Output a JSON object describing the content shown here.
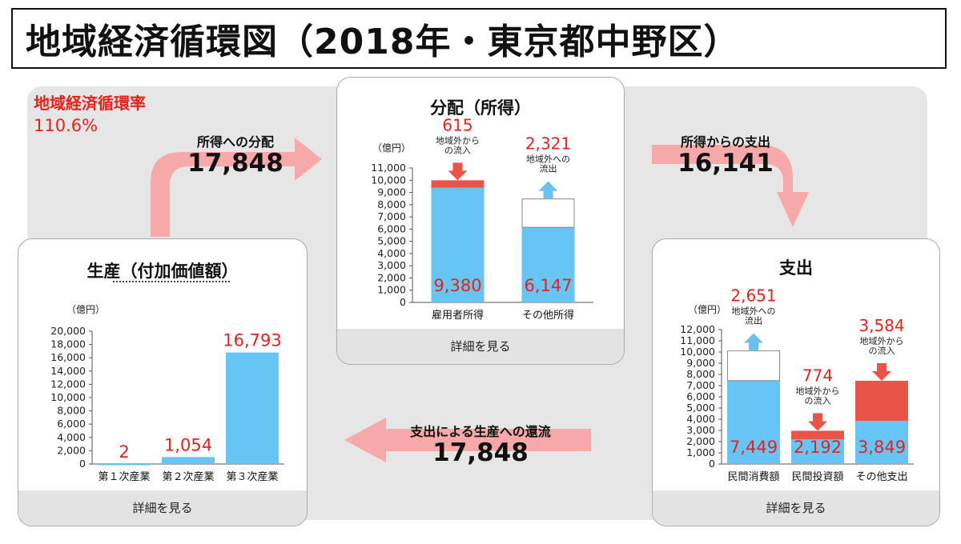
{
  "title": "地域経済循環図（2018年・東京都中野区）",
  "circulation_rate": {
    "label": "地域経済循環率",
    "value": "110.6%"
  },
  "flows": {
    "to_distribution": {
      "label": "所得への分配",
      "value": "17,848"
    },
    "from_income": {
      "label": "所得からの支出",
      "value": "16,141"
    },
    "to_production": {
      "label": "支出による生産への還流",
      "value": "17,848"
    }
  },
  "colors": {
    "blue": "#66c5f5",
    "red": "#e85548",
    "text_red": "#e8221b",
    "arrow": "#f7a8a8",
    "arrow_blue": "#6cc0f0"
  },
  "panels": {
    "production": {
      "title": "生産（付加価値額）",
      "footer": "詳細を見る"
    },
    "distribution": {
      "title": "分配（所得）",
      "footer": "詳細を見る"
    },
    "expenditure": {
      "title": "支出",
      "footer": "詳細を見る"
    }
  },
  "chart_data": [
    {
      "type": "bar",
      "title": "生産（付加価値額）",
      "unit": "（億円）",
      "ylim": [
        0,
        20000
      ],
      "yticks": [
        "0",
        "2,000",
        "4,000",
        "6,000",
        "8,000",
        "10,000",
        "12,000",
        "14,000",
        "16,000",
        "18,000",
        "20,000"
      ],
      "categories": [
        "第１次産業",
        "第２次産業",
        "第３次産業"
      ],
      "values": [
        2,
        1054,
        16793
      ],
      "value_labels": [
        "2",
        "1,054",
        "16,793"
      ]
    },
    {
      "type": "bar",
      "title": "分配（所得）",
      "unit": "（億円）",
      "ylim": [
        0,
        11000
      ],
      "yticks": [
        "0",
        "1,000",
        "2,000",
        "3,000",
        "4,000",
        "5,000",
        "6,000",
        "7,000",
        "8,000",
        "9,000",
        "10,000",
        "11,000"
      ],
      "categories": [
        "雇用者所得",
        "その他所得"
      ],
      "values": [
        9380,
        6147
      ],
      "value_labels": [
        "9,380",
        "6,147"
      ],
      "flows": [
        {
          "direction": "inflow",
          "label": "地域外からの流入",
          "value": 615,
          "value_label": "615"
        },
        {
          "direction": "outflow",
          "label": "地域外への流出",
          "value": 2321,
          "value_label": "2,321"
        }
      ]
    },
    {
      "type": "bar",
      "title": "支出",
      "unit": "（億円）",
      "ylim": [
        0,
        12000
      ],
      "yticks": [
        "0",
        "1,000",
        "2,000",
        "3,000",
        "4,000",
        "5,000",
        "6,000",
        "7,000",
        "8,000",
        "9,000",
        "10,000",
        "11,000",
        "12,000"
      ],
      "categories": [
        "民間消費額",
        "民間投資額",
        "その他支出"
      ],
      "values": [
        7449,
        2192,
        3849
      ],
      "value_labels": [
        "7,449",
        "2,192",
        "3,849"
      ],
      "flows": [
        {
          "direction": "outflow",
          "label": "地域外への流出",
          "value": 2651,
          "value_label": "2,651"
        },
        {
          "direction": "inflow",
          "label": "地域外からの流入",
          "value": 774,
          "value_label": "774"
        },
        {
          "direction": "inflow",
          "label": "地域外からの流入",
          "value": 3584,
          "value_label": "3,584"
        }
      ]
    }
  ]
}
